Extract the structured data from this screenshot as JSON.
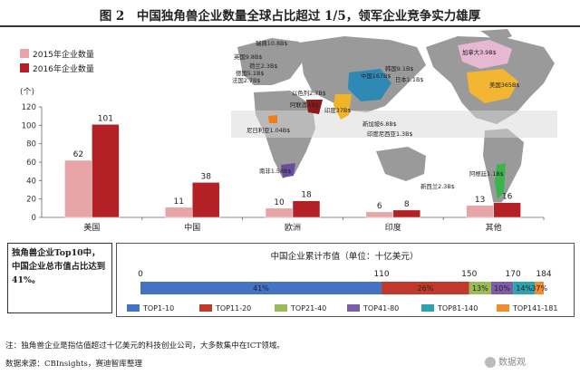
{
  "title": "图 2　中国独角兽企业数量全球占比超过 1/5，领军企业竞争实力雄厚",
  "callout": "独角兽企业Top10中，中国企业总市值占比达到41%。",
  "note": "注：独角兽企业是指估值超过十亿美元的科技创业公司，大多数集中在ICT领域。",
  "source": "数据来源：CBInsights，赛迪智库整理",
  "watermark": "数据观",
  "colors": {
    "bar2015": "#e7a5a8",
    "bar2016": "#b32025",
    "progress": [
      "#4472c4",
      "#c0392b",
      "#9bbb59",
      "#7b5ea7",
      "#2ea3b0",
      "#f08c2e"
    ]
  },
  "map_labels": [
    {
      "text": "瑞典10.8B$",
      "region": "Sweden"
    },
    {
      "text": "英国9.8B$",
      "region": "United Kingdom"
    },
    {
      "text": "荷兰2.3B$",
      "region": "Netherlands"
    },
    {
      "text": "德国5.1B$",
      "region": "Germany"
    },
    {
      "text": "法国2.7B$",
      "region": "France"
    },
    {
      "text": "中国167B$",
      "region": "China"
    },
    {
      "text": "韩国9.1B$",
      "region": "South Korea"
    },
    {
      "text": "日本1.1B$",
      "region": "Japan"
    },
    {
      "text": "加拿大3.9B$",
      "region": "Canada"
    },
    {
      "text": "美国365B$",
      "region": "United States"
    },
    {
      "text": "以色列2.7B$",
      "region": "Israel"
    },
    {
      "text": "阿联酋1B$",
      "region": "UAE"
    },
    {
      "text": "印度37B$",
      "region": "India"
    },
    {
      "text": "新加坡6.8B$",
      "region": "Singapore"
    },
    {
      "text": "印度尼西亚1.3B$",
      "region": "Indonesia"
    },
    {
      "text": "尼日利亚1.04B$",
      "region": "Nigeria"
    },
    {
      "text": "南非1.58B$",
      "region": "South Africa"
    },
    {
      "text": "阿根廷1.1B$",
      "region": "Argentina"
    },
    {
      "text": "新西兰2.3B$",
      "region": "New Zealand"
    }
  ],
  "chart_data": [
    {
      "type": "bar",
      "ylabel": "(个)",
      "ylim": [
        0,
        120
      ],
      "yticks": [
        0,
        20,
        40,
        60,
        80,
        100,
        120
      ],
      "categories": [
        "美国",
        "中国",
        "欧洲",
        "印度",
        "其他"
      ],
      "series": [
        {
          "name": "2015年企业数量",
          "values": [
            62,
            11,
            10,
            6,
            13
          ]
        },
        {
          "name": "2016年企业数量",
          "values": [
            101,
            38,
            18,
            8,
            16
          ]
        }
      ],
      "legend": "top-left",
      "grid": false
    },
    {
      "type": "bar",
      "subtype": "stacked-horizontal",
      "title": "中国企业累计市值（单位：十亿美元）",
      "scale_ticks": [
        0,
        110,
        150,
        170,
        184
      ],
      "xlim": [
        0,
        184
      ],
      "segments": [
        {
          "name": "TOP1-10",
          "start": 0,
          "end": 110,
          "label": "41%"
        },
        {
          "name": "TOP11-20",
          "start": 110,
          "end": 150,
          "label": "26%"
        },
        {
          "name": "TOP21-40",
          "start": 150,
          "end": 160,
          "label": "13%"
        },
        {
          "name": "TOP41-80",
          "start": 160,
          "end": 170,
          "label": "10%"
        },
        {
          "name": "TOP81-140",
          "start": 170,
          "end": 180,
          "label": "14%"
        },
        {
          "name": "TOP141-181",
          "start": 180,
          "end": 184,
          "label": "37%"
        }
      ],
      "legend": "bottom"
    }
  ]
}
